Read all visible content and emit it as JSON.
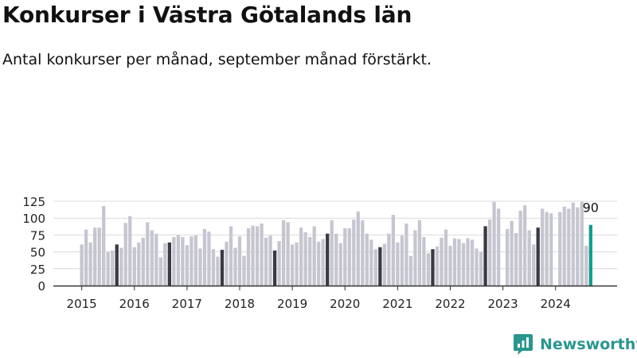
{
  "title": "Konkurser i Västra Götalands län",
  "subtitle": "Antal konkurser per månad, september månad förstärkt.",
  "brand": "Newsworthy",
  "colors": {
    "bar": "#c6c6d1",
    "highlight": "#3a3a45",
    "latest": "#159c8f",
    "grid": "#d9d9d9",
    "axis": "#333333",
    "brand": "#2a968f"
  },
  "chart_data": {
    "type": "bar",
    "title": "Konkurser i Västra Götalands län",
    "subtitle": "Antal konkurser per månad, september månad förstärkt.",
    "xlabel": "",
    "ylabel": "",
    "ylim": [
      0,
      130
    ],
    "yticks": [
      0,
      25,
      50,
      75,
      100,
      125
    ],
    "grid": true,
    "legend": "none",
    "start": "2015-01",
    "xtick_labels": [
      "2015",
      "2016",
      "2017",
      "2018",
      "2019",
      "2020",
      "2021",
      "2022",
      "2023",
      "2024"
    ],
    "highlight_month": "September",
    "values": [
      61,
      83,
      64,
      86,
      86,
      118,
      50,
      52,
      61,
      56,
      93,
      103,
      57,
      64,
      71,
      94,
      82,
      77,
      42,
      63,
      64,
      72,
      75,
      72,
      60,
      73,
      74,
      55,
      84,
      80,
      54,
      43,
      53,
      65,
      88,
      56,
      73,
      44,
      85,
      89,
      88,
      92,
      71,
      74,
      52,
      66,
      97,
      94,
      61,
      64,
      86,
      79,
      72,
      88,
      65,
      69,
      77,
      97,
      77,
      63,
      85,
      85,
      98,
      110,
      97,
      77,
      68,
      54,
      57,
      62,
      77,
      105,
      64,
      74,
      92,
      44,
      82,
      97,
      72,
      48,
      54,
      58,
      71,
      83,
      59,
      70,
      69,
      63,
      70,
      68,
      55,
      50,
      88,
      98,
      124,
      114,
      null,
      84,
      96,
      78,
      111,
      119,
      82,
      61,
      86,
      114,
      109,
      107,
      null,
      109,
      117,
      114,
      123,
      116,
      124,
      59,
      90
    ],
    "annotations": [
      {
        "label": "90",
        "month": "2024-09",
        "value": 90
      }
    ]
  }
}
